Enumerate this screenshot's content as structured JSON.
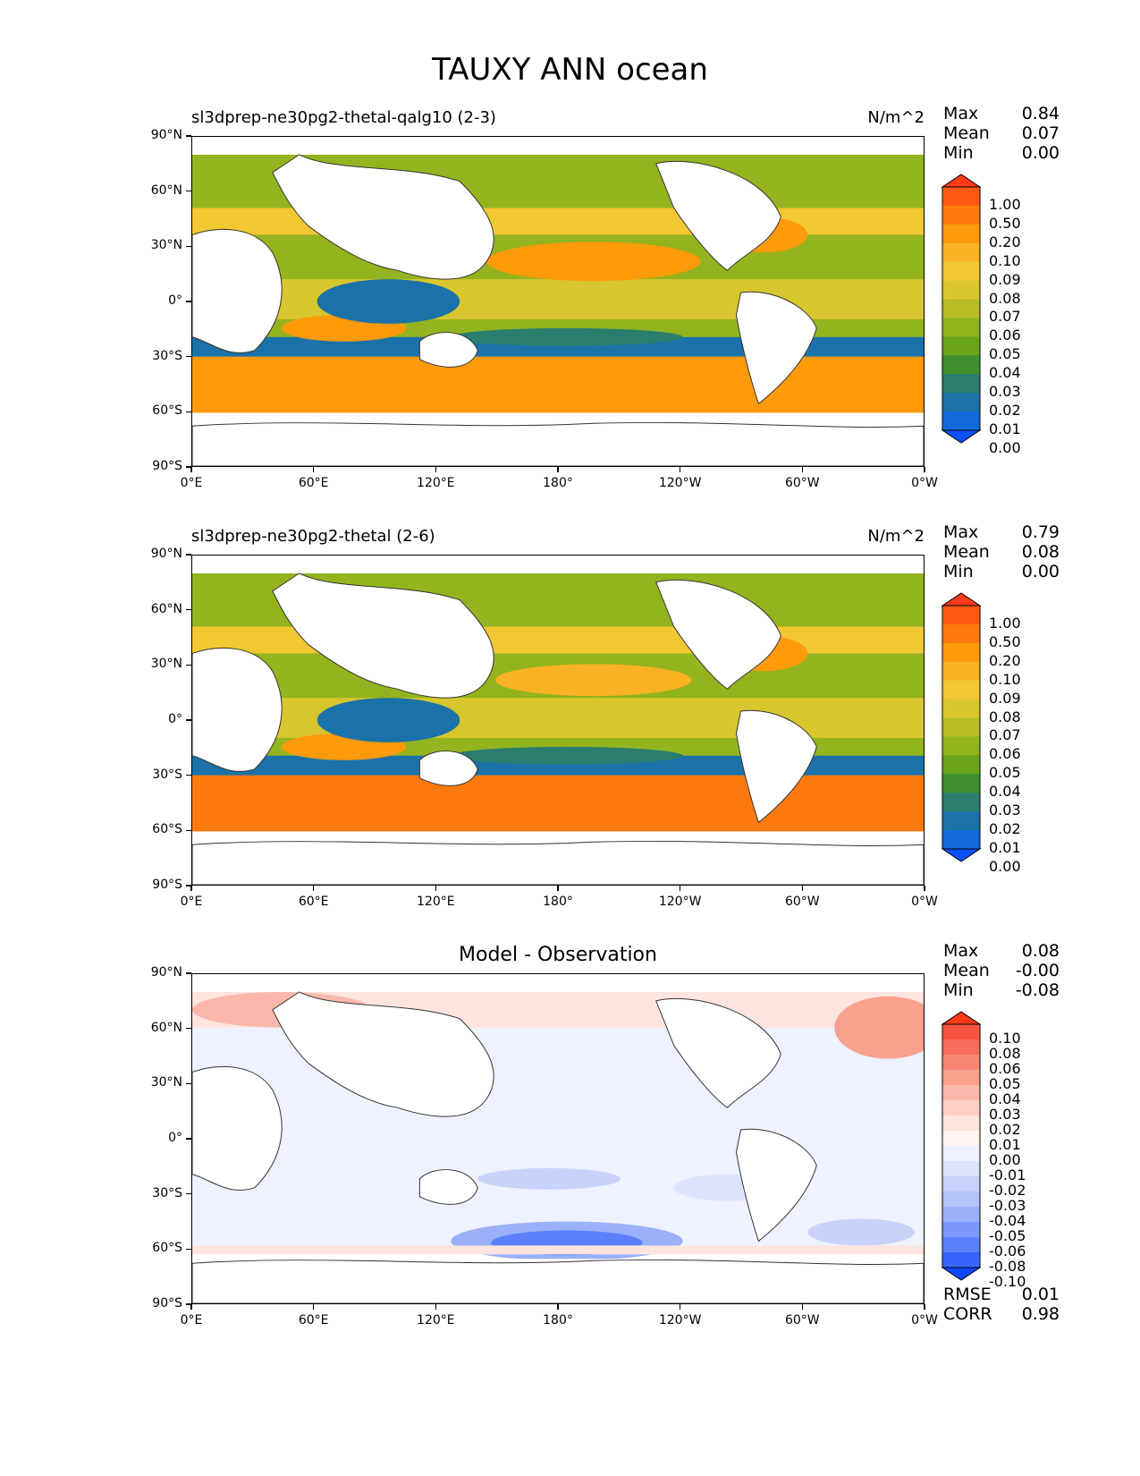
{
  "figure": {
    "title": "TAUXY ANN ocean"
  },
  "axes": {
    "yticks": [
      "90°N",
      "60°N",
      "30°N",
      "0°",
      "30°S",
      "60°S",
      "90°S"
    ],
    "xticks": [
      "0°E",
      "60°E",
      "120°E",
      "180°",
      "120°W",
      "60°W",
      "0°W"
    ]
  },
  "panels": [
    {
      "id": "model",
      "title": "sl3dprep-ne30pg2-thetal-qalg10 (2-3)",
      "units": "N/m^2",
      "stats": {
        "max_label": "Max",
        "max": "0.84",
        "mean_label": "Mean",
        "mean": "0.07",
        "min_label": "Min",
        "min": "0.00"
      },
      "colorbar": {
        "levels": [
          "1.00",
          "0.50",
          "0.20",
          "0.10",
          "0.09",
          "0.08",
          "0.07",
          "0.06",
          "0.05",
          "0.04",
          "0.03",
          "0.02",
          "0.01",
          "0.00"
        ],
        "colors": [
          "#ff3a1a",
          "#ff5a14",
          "#ff7a0e",
          "#ff9a0a",
          "#f9b222",
          "#f2c832",
          "#d8c62e",
          "#b6bd26",
          "#93b41e",
          "#6aa41a",
          "#3f8f30",
          "#2a7e6e",
          "#1a72a8",
          "#126ad8",
          "#0a50ff"
        ]
      }
    },
    {
      "id": "observation",
      "title": "sl3dprep-ne30pg2-thetal (2-6)",
      "units": "N/m^2",
      "stats": {
        "max_label": "Max",
        "max": "0.79",
        "mean_label": "Mean",
        "mean": "0.08",
        "min_label": "Min",
        "min": "0.00"
      },
      "colorbar": {
        "levels": [
          "1.00",
          "0.50",
          "0.20",
          "0.10",
          "0.09",
          "0.08",
          "0.07",
          "0.06",
          "0.05",
          "0.04",
          "0.03",
          "0.02",
          "0.01",
          "0.00"
        ],
        "colors": [
          "#ff3a1a",
          "#ff5a14",
          "#ff7a0e",
          "#ff9a0a",
          "#f9b222",
          "#f2c832",
          "#d8c62e",
          "#b6bd26",
          "#93b41e",
          "#6aa41a",
          "#3f8f30",
          "#2a7e6e",
          "#1a72a8",
          "#126ad8",
          "#0a50ff"
        ]
      }
    },
    {
      "id": "difference",
      "title": "Model - Observation",
      "stats": {
        "max_label": "Max",
        "max": "0.08",
        "mean_label": "Mean",
        "mean": "-0.00",
        "min_label": "Min",
        "min": "-0.08"
      },
      "colorbar": {
        "levels": [
          "0.10",
          "0.08",
          "0.06",
          "0.05",
          "0.04",
          "0.03",
          "0.02",
          "0.01",
          "0.00",
          "-0.01",
          "-0.02",
          "-0.03",
          "-0.04",
          "-0.05",
          "-0.06",
          "-0.08",
          "-0.10"
        ],
        "colors": [
          "#ff3a1a",
          "#f5553e",
          "#f56e5a",
          "#f78773",
          "#f9a08f",
          "#fbb8aa",
          "#fcd0c6",
          "#fde4de",
          "#fff4f2",
          "#eef1ff",
          "#dde3fb",
          "#c9d3fa",
          "#b3c2fa",
          "#9bb0fa",
          "#7b98fb",
          "#5a80fc",
          "#3866fd",
          "#0f45ff"
        ]
      },
      "metrics": {
        "rmse_label": "RMSE",
        "rmse": "0.01",
        "corr_label": "CORR",
        "corr": "0.98"
      }
    }
  ]
}
